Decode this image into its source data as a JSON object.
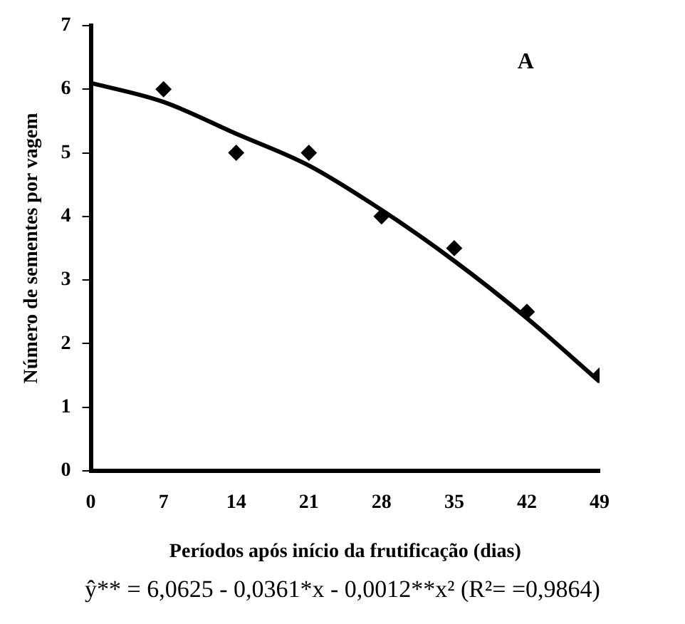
{
  "chart_data": {
    "type": "scatter",
    "xlabel": "Períodos após início da frutificação (dias)",
    "ylabel": "Número de sementes por vagem",
    "x": [
      7,
      14,
      21,
      28,
      35,
      42,
      49
    ],
    "series": [
      {
        "type": "scatter",
        "color": "#000000",
        "marker": "diamond",
        "values": [
          6,
          5,
          5,
          4,
          3.5,
          2.5,
          1.5
        ]
      },
      {
        "type": "line",
        "color": "#000000",
        "marker": "none",
        "x": [
          0,
          7,
          14,
          21,
          28,
          35,
          42,
          49
        ],
        "values": [
          6.1,
          5.8,
          5.3,
          4.8,
          4.1,
          3.3,
          2.4,
          1.4
        ]
      }
    ],
    "xlim": [
      0,
      49
    ],
    "xticks": [
      0,
      7,
      14,
      21,
      28,
      35,
      42,
      49
    ],
    "ylim": [
      0,
      7
    ],
    "yticks": [
      0,
      1,
      2,
      3,
      4,
      5,
      6,
      7
    ],
    "grid": false,
    "legend": false,
    "annotations": [
      "A",
      "ŷ** = 6,0625 - 0,0361*x - 0,0012**x² (R²=  =0,9864)"
    ]
  }
}
